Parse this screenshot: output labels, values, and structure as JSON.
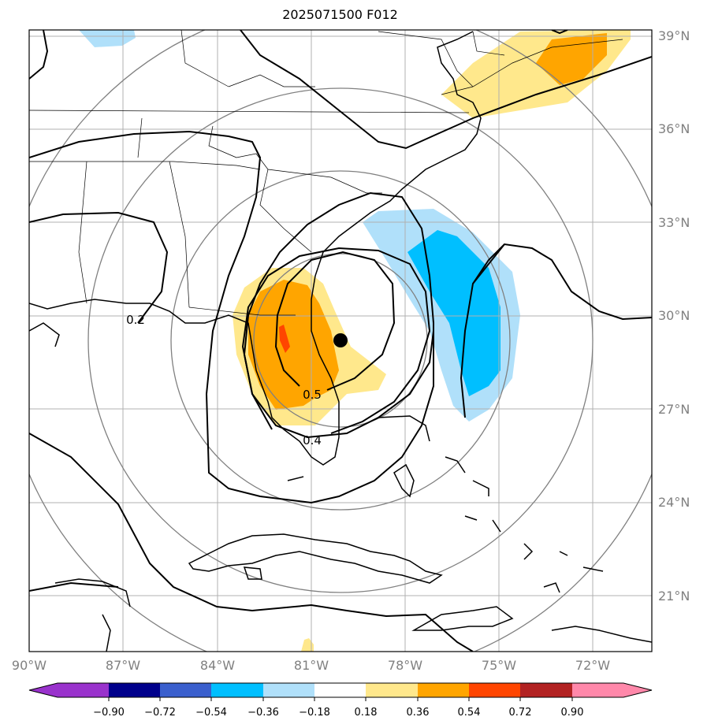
{
  "title": "2025071500 F012",
  "map": {
    "lon_range": [
      -90,
      -70
    ],
    "lat_range": [
      19,
      39
    ],
    "lon_ticks": [
      {
        "value": -90,
        "label": "90°W"
      },
      {
        "value": -87,
        "label": "87°W"
      },
      {
        "value": -84,
        "label": "84°W"
      },
      {
        "value": -81,
        "label": "81°W"
      },
      {
        "value": -78,
        "label": "78°W"
      },
      {
        "value": -75,
        "label": "75°W"
      },
      {
        "value": -72,
        "label": "72°W"
      }
    ],
    "lat_ticks": [
      {
        "value": 21,
        "label": "21°N"
      },
      {
        "value": 24,
        "label": "24°N"
      },
      {
        "value": 27,
        "label": "27°N"
      },
      {
        "value": 30,
        "label": "30°N"
      },
      {
        "value": 33,
        "label": "33°N"
      },
      {
        "value": 36,
        "label": "36°N"
      },
      {
        "value": 39,
        "label": "39°N"
      }
    ],
    "center_marker": {
      "lon": -80.1,
      "lat": 29.2
    },
    "contour_labels": [
      "0.2",
      "0.5",
      "0.4"
    ]
  },
  "colorbar": {
    "tick_labels": [
      "−0.90",
      "−0.72",
      "−0.54",
      "−0.36",
      "−0.18",
      "0.18",
      "0.36",
      "0.54",
      "0.72",
      "0.90"
    ],
    "colors": [
      "#9932cc",
      "#00008b",
      "#3a5fcd",
      "#00bfff",
      "#b0e0fa",
      "#ffffff",
      "#ffe88c",
      "#ffa500",
      "#ff4500",
      "#b22222",
      "#ff88aa"
    ]
  }
}
